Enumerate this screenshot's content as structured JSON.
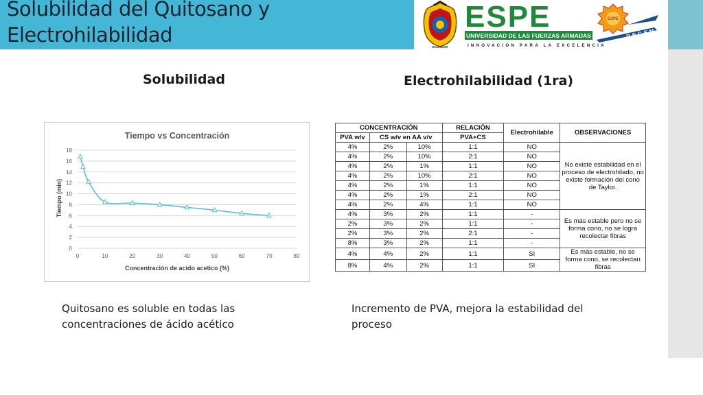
{
  "header": {
    "title_line1": "Solubilidad del Quitosano y",
    "title_line2": "Electrohilabilidad",
    "logo": {
      "brand": "ESPE",
      "subtitle": "UNIVERSIDAD DE LAS FUERZAS ARMADAS",
      "tagline": "INNOVACIÓN PARA LA EXCELENCIA",
      "seal_text": "ECUADOR",
      "badge_top": "ESPE",
      "badge_bottom": "DECEM",
      "brand_color": "#1e8a3a"
    }
  },
  "left": {
    "heading": "Solubilidad",
    "caption": "Quitosano es soluble en todas las concentraciones de ácido acético"
  },
  "right": {
    "heading": "Electrohilabilidad (1ra)",
    "caption": "Incremento de PVA, mejora la estabilidad del proceso"
  },
  "chart_data": {
    "type": "line",
    "title": "Tiempo vs Concentración",
    "xlabel": "Concentración de acido acetico (%)",
    "ylabel": "Tiempo (min)",
    "xlim": [
      0,
      80
    ],
    "ylim": [
      0,
      18
    ],
    "xticks": [
      0,
      10,
      20,
      30,
      40,
      50,
      60,
      70,
      80
    ],
    "yticks": [
      0,
      2,
      4,
      6,
      8,
      10,
      12,
      14,
      16,
      18
    ],
    "grid": true,
    "line_color": "#5bbfd3",
    "x": [
      1,
      2,
      4,
      10,
      20,
      30,
      40,
      50,
      60,
      70
    ],
    "y": [
      16.8,
      15,
      12.2,
      8.5,
      8.3,
      8,
      7.5,
      7,
      6.4,
      6
    ]
  },
  "table": {
    "h_concentracion": "CONCENTRACIÓN",
    "h_relacion": "RELACIÓN",
    "h_electrohilable": "Electrohilable",
    "h_observaciones": "OBSERVACIONES",
    "h_pva": "PVA w/v",
    "h_cs": "CS w/v en AA v/v",
    "h_pvacs": "PVA+CS",
    "rows": [
      [
        "4%",
        "2%",
        "10%",
        "1:1",
        "NO"
      ],
      [
        "4%",
        "2%",
        "10%",
        "2:1",
        "NO"
      ],
      [
        "4%",
        "2%",
        "1%",
        "1:1",
        "NO"
      ],
      [
        "4%",
        "2%",
        "10%",
        "2:1",
        "NO"
      ],
      [
        "4%",
        "2%",
        "1%",
        "1:1",
        "NO"
      ],
      [
        "4%",
        "2%",
        "1%",
        "2:1",
        "NO"
      ],
      [
        "4%",
        "2%",
        "4%",
        "1:1",
        "NO"
      ],
      [
        "4%",
        "3%",
        "2%",
        "1:1",
        "-"
      ],
      [
        "2%",
        "3%",
        "2%",
        "1:1",
        "-"
      ],
      [
        "2%",
        "3%",
        "2%",
        "2:1",
        "-"
      ],
      [
        "8%",
        "3%",
        "2%",
        "1:1",
        "-"
      ],
      [
        "4%",
        "4%",
        "2%",
        "1:1",
        "SI"
      ],
      [
        "8%",
        "4%",
        "2%",
        "1:1",
        "SI"
      ]
    ],
    "obs1": "No existe estabilidad en el proceso de electrohilado, no existe formación del cono de Taylor.",
    "obs2": "Es más estable pero no se forma cono, no se logra recolectar fibras",
    "obs3": "Es más estable, no se forma cono, se recolectan fibras"
  }
}
